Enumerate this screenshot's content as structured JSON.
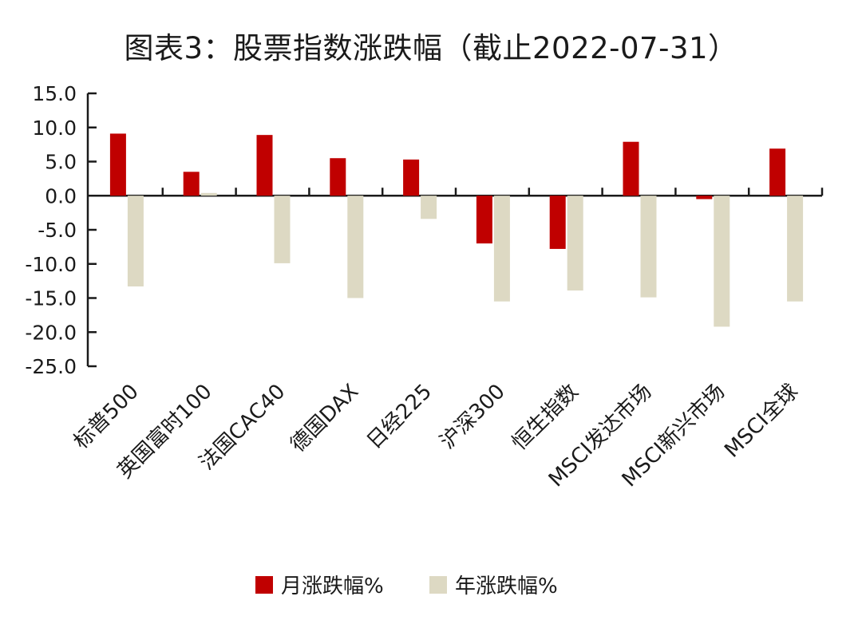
{
  "chart_data": {
    "type": "bar",
    "title": "图表3：股票指数涨跌幅（截止2022-07-31）",
    "xlabel": "",
    "ylabel": "",
    "categories": [
      "标普500",
      "英国富时100",
      "法国CAC40",
      "德国DAX",
      "日经225",
      "沪深300",
      "恒生指数",
      "MSCI发达市场",
      "MSCI新兴市场",
      "MSCI全球"
    ],
    "series": [
      {
        "name": "月涨跌幅%",
        "color": "#c00000",
        "values": [
          9.1,
          3.5,
          8.9,
          5.5,
          5.3,
          -7.0,
          -7.8,
          7.9,
          -0.5,
          6.9
        ]
      },
      {
        "name": "年涨跌幅%",
        "color": "#ddd9c3",
        "values": [
          -13.3,
          0.4,
          -9.9,
          -15.0,
          -3.4,
          -15.5,
          -13.9,
          -14.9,
          -19.2,
          -15.5
        ]
      }
    ],
    "ylim": [
      -25,
      15
    ],
    "yticks": [
      "15.0",
      "10.0",
      "5.0",
      "0.0",
      "-5.0",
      "-10.0",
      "-15.0",
      "-20.0",
      "-25.0"
    ],
    "grid": false,
    "legend": "bottom"
  }
}
